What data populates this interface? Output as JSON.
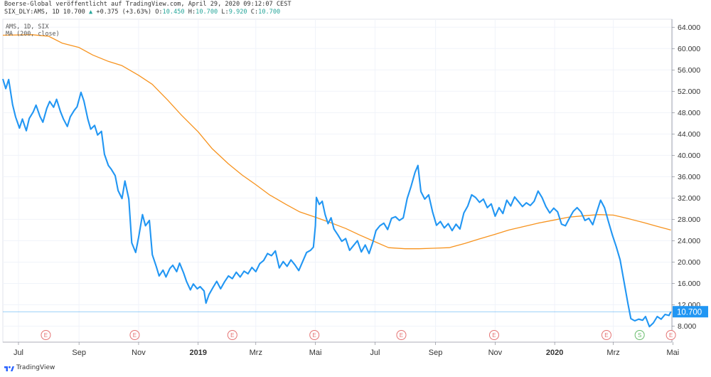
{
  "header": {
    "line1": "Boerse-Global veröffentlicht auf TradingView.com, April 29, 2020 09:12:07 CEST",
    "symbol": "SIX_DLY:AMS, 1D 10.700",
    "change_icon": "up-triangle-icon",
    "change": "+0.375 (+3.63%)",
    "o_label": "O:",
    "o": "10.450",
    "h_label": "H:",
    "h": "10.700",
    "l_label": "L:",
    "l": "9.920",
    "c_label": "C:",
    "c": "10.700"
  },
  "legend": {
    "line1": "AMS, 1D, SIX",
    "line2": "MA (200, close)"
  },
  "branding": {
    "text": "TradingView",
    "icon": "tradingview-logo-icon"
  },
  "colors": {
    "price": "#2196f3",
    "ma": "#f7931e",
    "last_price_bg": "#2196f3",
    "earnings": "#e57373",
    "split": "#66bb6a"
  },
  "chart_data": {
    "type": "line",
    "xlim": [
      "2018-06-15",
      "2020-04-30"
    ],
    "ylim": [
      5.0,
      65.5
    ],
    "y_ticks": [
      "64.000",
      "60.000",
      "56.000",
      "52.000",
      "48.000",
      "44.000",
      "40.000",
      "36.000",
      "32.000",
      "28.000",
      "24.000",
      "20.000",
      "16.000",
      "12.000",
      "8.000"
    ],
    "y_tick_values": [
      64,
      60,
      56,
      52,
      48,
      44,
      40,
      36,
      32,
      28,
      24,
      20,
      16,
      12,
      8
    ],
    "x_ticks": [
      {
        "label": "Jul",
        "date": "2018-07-01",
        "bold": false
      },
      {
        "label": "Sep",
        "date": "2018-09-01",
        "bold": false
      },
      {
        "label": "Nov",
        "date": "2018-11-01",
        "bold": false
      },
      {
        "label": "2019",
        "date": "2019-01-01",
        "bold": true
      },
      {
        "label": "Mrz",
        "date": "2019-03-01",
        "bold": false
      },
      {
        "label": "Mai",
        "date": "2019-05-01",
        "bold": false
      },
      {
        "label": "Jul",
        "date": "2019-07-01",
        "bold": false
      },
      {
        "label": "Sep",
        "date": "2019-09-01",
        "bold": false
      },
      {
        "label": "Nov",
        "date": "2019-11-01",
        "bold": false
      },
      {
        "label": "2020",
        "date": "2020-01-01",
        "bold": true
      },
      {
        "label": "Mrz",
        "date": "2020-03-01",
        "bold": false
      },
      {
        "label": "Mai",
        "date": "2020-05-01",
        "bold": false
      }
    ],
    "last_price": {
      "value": 10.7,
      "label": "10.700"
    },
    "grid": true,
    "series": [
      {
        "name": "AMS, 1D, SIX",
        "points": [
          [
            "2018-06-15",
            54.3
          ],
          [
            "2018-06-18",
            52.5
          ],
          [
            "2018-06-21",
            54.2
          ],
          [
            "2018-06-25",
            49.5
          ],
          [
            "2018-06-28",
            47.2
          ],
          [
            "2018-07-02",
            45.1
          ],
          [
            "2018-07-05",
            46.8
          ],
          [
            "2018-07-09",
            44.6
          ],
          [
            "2018-07-12",
            46.9
          ],
          [
            "2018-07-16",
            48.1
          ],
          [
            "2018-07-19",
            49.4
          ],
          [
            "2018-07-23",
            47.3
          ],
          [
            "2018-07-26",
            46.2
          ],
          [
            "2018-07-30",
            48.8
          ],
          [
            "2018-08-02",
            50.1
          ],
          [
            "2018-08-06",
            49.0
          ],
          [
            "2018-08-09",
            50.5
          ],
          [
            "2018-08-13",
            48.2
          ],
          [
            "2018-08-16",
            46.8
          ],
          [
            "2018-08-20",
            45.4
          ],
          [
            "2018-08-23",
            47.2
          ],
          [
            "2018-08-27",
            48.4
          ],
          [
            "2018-08-30",
            49.1
          ],
          [
            "2018-09-03",
            51.8
          ],
          [
            "2018-09-06",
            50.2
          ],
          [
            "2018-09-10",
            46.8
          ],
          [
            "2018-09-13",
            44.9
          ],
          [
            "2018-09-17",
            45.6
          ],
          [
            "2018-09-20",
            43.8
          ],
          [
            "2018-09-24",
            44.5
          ],
          [
            "2018-09-27",
            40.2
          ],
          [
            "2018-10-01",
            38.1
          ],
          [
            "2018-10-04",
            37.4
          ],
          [
            "2018-10-08",
            36.2
          ],
          [
            "2018-10-11",
            33.4
          ],
          [
            "2018-10-15",
            31.9
          ],
          [
            "2018-10-18",
            35.2
          ],
          [
            "2018-10-22",
            31.8
          ],
          [
            "2018-10-25",
            23.6
          ],
          [
            "2018-10-29",
            21.8
          ],
          [
            "2018-11-01",
            24.6
          ],
          [
            "2018-11-05",
            28.9
          ],
          [
            "2018-11-08",
            26.8
          ],
          [
            "2018-11-12",
            27.8
          ],
          [
            "2018-11-15",
            21.4
          ],
          [
            "2018-11-19",
            19.2
          ],
          [
            "2018-11-22",
            17.4
          ],
          [
            "2018-11-26",
            18.5
          ],
          [
            "2018-11-29",
            17.2
          ],
          [
            "2018-12-03",
            18.8
          ],
          [
            "2018-12-06",
            19.4
          ],
          [
            "2018-12-10",
            18.2
          ],
          [
            "2018-12-13",
            19.8
          ],
          [
            "2018-12-17",
            18.0
          ],
          [
            "2018-12-20",
            16.4
          ],
          [
            "2018-12-24",
            14.8
          ],
          [
            "2018-12-27",
            15.9
          ],
          [
            "2018-12-31",
            15.0
          ],
          [
            "2019-01-03",
            15.4
          ],
          [
            "2019-01-07",
            14.6
          ],
          [
            "2019-01-09",
            12.3
          ],
          [
            "2019-01-12",
            13.9
          ],
          [
            "2019-01-16",
            15.2
          ],
          [
            "2019-01-20",
            16.4
          ],
          [
            "2019-01-24",
            15.0
          ],
          [
            "2019-01-28",
            16.3
          ],
          [
            "2019-02-01",
            17.4
          ],
          [
            "2019-02-05",
            16.9
          ],
          [
            "2019-02-09",
            18.1
          ],
          [
            "2019-02-13",
            17.2
          ],
          [
            "2019-02-17",
            18.3
          ],
          [
            "2019-02-21",
            17.8
          ],
          [
            "2019-02-25",
            19.0
          ],
          [
            "2019-03-01",
            18.2
          ],
          [
            "2019-03-05",
            19.7
          ],
          [
            "2019-03-09",
            20.3
          ],
          [
            "2019-03-13",
            21.6
          ],
          [
            "2019-03-17",
            21.2
          ],
          [
            "2019-03-21",
            22.1
          ],
          [
            "2019-03-25",
            18.9
          ],
          [
            "2019-03-29",
            20.1
          ],
          [
            "2019-04-02",
            19.2
          ],
          [
            "2019-04-06",
            20.4
          ],
          [
            "2019-04-10",
            19.5
          ],
          [
            "2019-04-14",
            18.4
          ],
          [
            "2019-04-18",
            20.1
          ],
          [
            "2019-04-22",
            21.8
          ],
          [
            "2019-04-26",
            22.2
          ],
          [
            "2019-04-29",
            22.8
          ],
          [
            "2019-05-01",
            26.8
          ],
          [
            "2019-05-02",
            32.1
          ],
          [
            "2019-05-05",
            30.8
          ],
          [
            "2019-05-08",
            31.4
          ],
          [
            "2019-05-11",
            28.9
          ],
          [
            "2019-05-14",
            27.2
          ],
          [
            "2019-05-17",
            28.3
          ],
          [
            "2019-05-20",
            26.2
          ],
          [
            "2019-05-24",
            25.1
          ],
          [
            "2019-05-28",
            23.9
          ],
          [
            "2019-06-01",
            24.4
          ],
          [
            "2019-06-05",
            22.2
          ],
          [
            "2019-06-09",
            23.1
          ],
          [
            "2019-06-13",
            24.0
          ],
          [
            "2019-06-17",
            21.9
          ],
          [
            "2019-06-21",
            23.2
          ],
          [
            "2019-06-25",
            21.6
          ],
          [
            "2019-06-29",
            23.8
          ],
          [
            "2019-07-02",
            25.9
          ],
          [
            "2019-07-06",
            26.8
          ],
          [
            "2019-07-10",
            27.3
          ],
          [
            "2019-07-14",
            26.1
          ],
          [
            "2019-07-18",
            28.2
          ],
          [
            "2019-07-22",
            28.5
          ],
          [
            "2019-07-26",
            27.8
          ],
          [
            "2019-07-30",
            28.3
          ],
          [
            "2019-08-03",
            31.9
          ],
          [
            "2019-08-07",
            34.2
          ],
          [
            "2019-08-11",
            36.8
          ],
          [
            "2019-08-14",
            38.1
          ],
          [
            "2019-08-17",
            33.2
          ],
          [
            "2019-08-21",
            31.8
          ],
          [
            "2019-08-25",
            32.6
          ],
          [
            "2019-08-29",
            29.4
          ],
          [
            "2019-09-02",
            26.9
          ],
          [
            "2019-09-06",
            27.6
          ],
          [
            "2019-09-10",
            26.4
          ],
          [
            "2019-09-14",
            27.2
          ],
          [
            "2019-09-18",
            25.9
          ],
          [
            "2019-09-22",
            27.1
          ],
          [
            "2019-09-26",
            26.2
          ],
          [
            "2019-09-30",
            29.2
          ],
          [
            "2019-10-04",
            30.5
          ],
          [
            "2019-10-08",
            32.6
          ],
          [
            "2019-10-12",
            32.1
          ],
          [
            "2019-10-16",
            31.2
          ],
          [
            "2019-10-20",
            31.8
          ],
          [
            "2019-10-24",
            30.2
          ],
          [
            "2019-10-28",
            30.9
          ],
          [
            "2019-11-01",
            28.6
          ],
          [
            "2019-11-05",
            30.2
          ],
          [
            "2019-11-09",
            29.1
          ],
          [
            "2019-11-13",
            31.6
          ],
          [
            "2019-11-17",
            30.5
          ],
          [
            "2019-11-21",
            32.2
          ],
          [
            "2019-11-25",
            31.3
          ],
          [
            "2019-11-29",
            30.4
          ],
          [
            "2019-12-03",
            31.1
          ],
          [
            "2019-12-07",
            30.6
          ],
          [
            "2019-12-11",
            31.4
          ],
          [
            "2019-12-15",
            33.3
          ],
          [
            "2019-12-19",
            32.1
          ],
          [
            "2019-12-23",
            30.4
          ],
          [
            "2019-12-27",
            29.2
          ],
          [
            "2019-12-31",
            30.1
          ],
          [
            "2020-01-04",
            29.4
          ],
          [
            "2020-01-08",
            27.1
          ],
          [
            "2020-01-12",
            26.8
          ],
          [
            "2020-01-16",
            28.2
          ],
          [
            "2020-01-20",
            29.5
          ],
          [
            "2020-01-24",
            30.2
          ],
          [
            "2020-01-28",
            29.4
          ],
          [
            "2020-02-01",
            27.8
          ],
          [
            "2020-02-05",
            28.2
          ],
          [
            "2020-02-09",
            27.0
          ],
          [
            "2020-02-13",
            29.3
          ],
          [
            "2020-02-17",
            31.6
          ],
          [
            "2020-02-21",
            30.2
          ],
          [
            "2020-02-25",
            27.6
          ],
          [
            "2020-02-29",
            25.1
          ],
          [
            "2020-03-04",
            22.9
          ],
          [
            "2020-03-08",
            20.4
          ],
          [
            "2020-03-12",
            16.3
          ],
          [
            "2020-03-16",
            12.2
          ],
          [
            "2020-03-19",
            9.4
          ],
          [
            "2020-03-23",
            9.0
          ],
          [
            "2020-03-27",
            9.3
          ],
          [
            "2020-03-31",
            9.1
          ],
          [
            "2020-04-03",
            9.8
          ],
          [
            "2020-04-07",
            7.9
          ],
          [
            "2020-04-11",
            8.6
          ],
          [
            "2020-04-15",
            9.8
          ],
          [
            "2020-04-19",
            9.3
          ],
          [
            "2020-04-23",
            10.2
          ],
          [
            "2020-04-27",
            10.0
          ],
          [
            "2020-04-29",
            10.7
          ]
        ]
      },
      {
        "name": "MA (200, close)",
        "points": [
          [
            "2018-06-15",
            62.5
          ],
          [
            "2018-07-15",
            62.6
          ],
          [
            "2018-08-01",
            62.3
          ],
          [
            "2018-08-15",
            61.0
          ],
          [
            "2018-09-01",
            60.2
          ],
          [
            "2018-09-15",
            58.8
          ],
          [
            "2018-10-01",
            57.6
          ],
          [
            "2018-10-15",
            56.8
          ],
          [
            "2018-11-01",
            55.0
          ],
          [
            "2018-11-15",
            53.3
          ],
          [
            "2018-12-01",
            50.3
          ],
          [
            "2018-12-15",
            47.5
          ],
          [
            "2019-01-01",
            44.4
          ],
          [
            "2019-01-15",
            41.3
          ],
          [
            "2019-02-01",
            38.4
          ],
          [
            "2019-02-15",
            36.3
          ],
          [
            "2019-03-01",
            34.5
          ],
          [
            "2019-03-15",
            32.6
          ],
          [
            "2019-04-01",
            30.8
          ],
          [
            "2019-04-15",
            29.4
          ],
          [
            "2019-05-01",
            28.4
          ],
          [
            "2019-05-15",
            27.5
          ],
          [
            "2019-06-01",
            26.3
          ],
          [
            "2019-06-15",
            25.1
          ],
          [
            "2019-07-01",
            23.8
          ],
          [
            "2019-07-15",
            22.7
          ],
          [
            "2019-08-01",
            22.5
          ],
          [
            "2019-08-15",
            22.5
          ],
          [
            "2019-09-01",
            22.6
          ],
          [
            "2019-09-15",
            22.7
          ],
          [
            "2019-10-01",
            23.5
          ],
          [
            "2019-10-15",
            24.3
          ],
          [
            "2019-11-01",
            25.2
          ],
          [
            "2019-11-15",
            26.0
          ],
          [
            "2019-12-01",
            26.7
          ],
          [
            "2019-12-15",
            27.3
          ],
          [
            "2020-01-01",
            27.9
          ],
          [
            "2020-01-15",
            28.4
          ],
          [
            "2020-02-01",
            28.7
          ],
          [
            "2020-02-15",
            28.9
          ],
          [
            "2020-03-01",
            28.8
          ],
          [
            "2020-03-15",
            28.2
          ],
          [
            "2020-04-01",
            27.4
          ],
          [
            "2020-04-15",
            26.7
          ],
          [
            "2020-04-29",
            26.0
          ]
        ]
      }
    ],
    "event_markers": [
      {
        "date": "2018-07-29",
        "letter": "E",
        "kind": "earnings"
      },
      {
        "date": "2018-10-28",
        "letter": "E",
        "kind": "earnings"
      },
      {
        "date": "2019-02-05",
        "letter": "E",
        "kind": "earnings"
      },
      {
        "date": "2019-04-30",
        "letter": "E",
        "kind": "earnings"
      },
      {
        "date": "2019-07-28",
        "letter": "E",
        "kind": "earnings"
      },
      {
        "date": "2019-10-31",
        "letter": "E",
        "kind": "earnings"
      },
      {
        "date": "2020-02-23",
        "letter": "E",
        "kind": "earnings"
      },
      {
        "date": "2020-03-28",
        "letter": "S",
        "kind": "split"
      },
      {
        "date": "2020-04-29",
        "letter": "E",
        "kind": "earnings"
      }
    ]
  }
}
